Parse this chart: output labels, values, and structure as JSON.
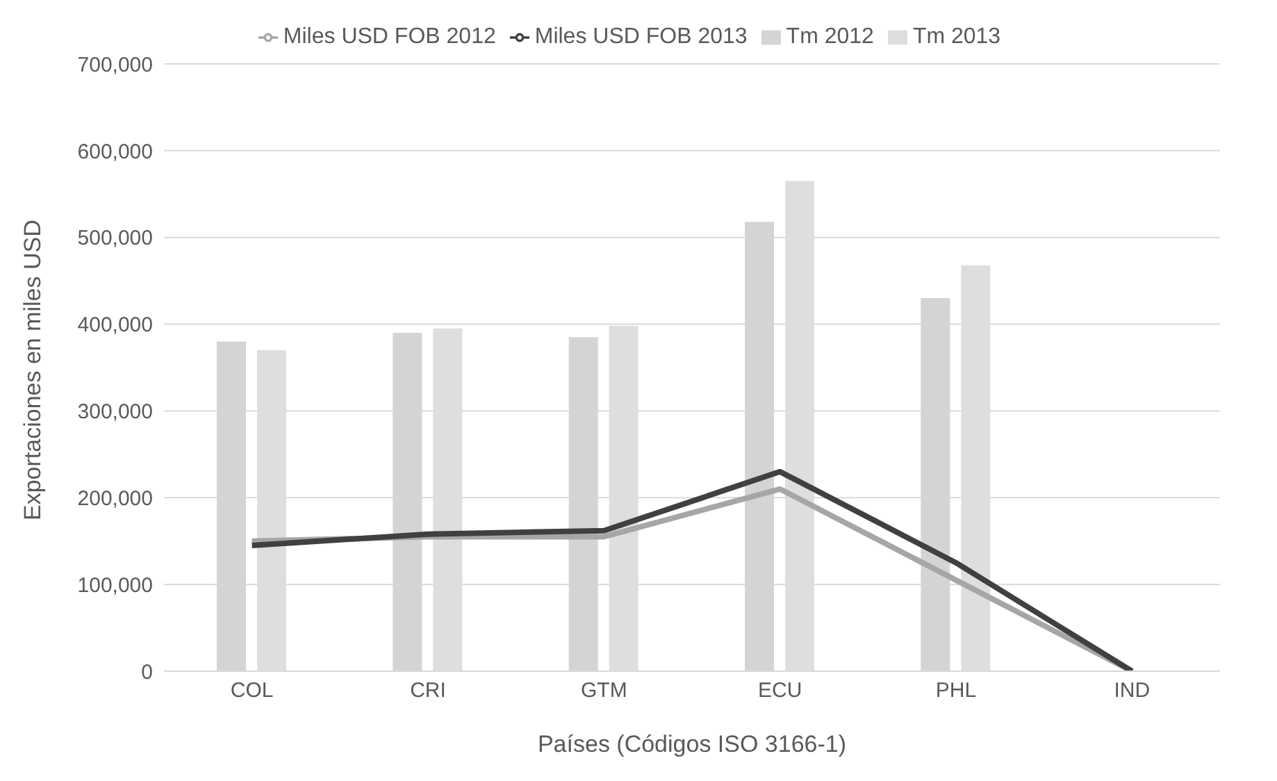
{
  "chart_data": {
    "type": "bar",
    "xlabel": "Países (Códigos ISO 3166-1)",
    "ylabel": "Exportaciones en miles USD",
    "categories": [
      "COL",
      "CRI",
      "GTM",
      "ECU",
      "PHL",
      "IND"
    ],
    "series": [
      {
        "name": "Tm 2012",
        "color": "#d4d4d4",
        "values": [
          380000,
          390000,
          385000,
          518000,
          430000,
          0
        ]
      },
      {
        "name": "Tm 2013",
        "color": "#dedede",
        "values": [
          370000,
          395000,
          398000,
          565000,
          468000,
          0
        ]
      },
      {
        "name": "Miles USD FOB 2012",
        "type": "line",
        "color": "#a6a6a6",
        "values": [
          150000,
          155000,
          155000,
          210000,
          105000,
          0
        ]
      },
      {
        "name": "Miles USD FOB 2013",
        "type": "line",
        "color": "#404040",
        "values": [
          145000,
          158000,
          162000,
          230000,
          125000,
          0
        ]
      }
    ],
    "ylim": [
      0,
      700000
    ],
    "yticks": [
      {
        "value": 0,
        "label": "0"
      },
      {
        "value": 100000,
        "label": "100,000"
      },
      {
        "value": 200000,
        "label": "200,000"
      },
      {
        "value": 300000,
        "label": "300,000"
      },
      {
        "value": 400000,
        "label": "400,000"
      },
      {
        "value": 500000,
        "label": "500,000"
      },
      {
        "value": 600000,
        "label": "600,000"
      },
      {
        "value": 700000,
        "label": "700,000"
      }
    ],
    "grid": "y",
    "legend": "top",
    "marker": "none"
  }
}
